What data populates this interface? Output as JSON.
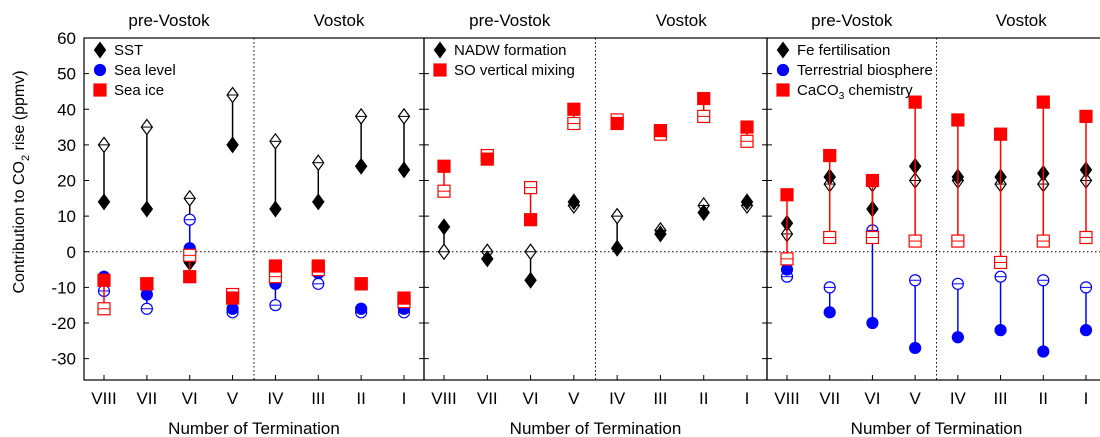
{
  "chart_data": {
    "type": "scatter",
    "ylabel_main": "Contribution to CO",
    "ylabel_sub": "2",
    "ylabel_tail": " rise (ppmv)",
    "xlabel": "Number of Termination",
    "categories": [
      "VIII",
      "VII",
      "VI",
      "V",
      "IV",
      "III",
      "II",
      "I"
    ],
    "ylim": [
      -36,
      60
    ],
    "yticks": [
      -30,
      -20,
      -10,
      0,
      10,
      20,
      30,
      40,
      50,
      60
    ],
    "zero_line": "dotted",
    "group_labels": [
      "pre-Vostok",
      "Vostok"
    ],
    "colors": {
      "black": "#000000",
      "blue": "#0000ff",
      "red": "#ff0000"
    },
    "panels": [
      {
        "legend_placement": "top-left",
        "series": [
          {
            "name": "SST",
            "color": "#000000",
            "marker": "diamond",
            "filled": [
              14,
              12,
              -3,
              30,
              12,
              14,
              24,
              23
            ],
            "open": [
              30,
              35,
              15,
              44,
              31,
              25,
              38,
              38
            ]
          },
          {
            "name": "Sea level",
            "color": "#0000ff",
            "marker": "circle",
            "filled": [
              -7,
              -12,
              1,
              -16,
              -9,
              -6,
              -16,
              -16
            ],
            "open": [
              -11,
              -16,
              9,
              -17,
              -15,
              -9,
              -17,
              -17
            ]
          },
          {
            "name": "Sea ice",
            "color": "#ff0000",
            "marker": "square",
            "filled": [
              -8,
              -9,
              -7,
              -13,
              -4,
              -4,
              -9,
              -13
            ],
            "open": [
              -16,
              -9,
              -1,
              -12,
              -7,
              -5,
              -9,
              -14
            ]
          }
        ]
      },
      {
        "legend_placement": "top-left",
        "series": [
          {
            "name": "NADW formation",
            "color": "#000000",
            "marker": "diamond",
            "filled": [
              7,
              -2,
              -8,
              14,
              1,
              5,
              11,
              14
            ],
            "open": [
              0,
              0,
              0,
              13,
              10,
              6,
              13,
              13
            ]
          },
          {
            "name": "SO vertical mixing",
            "color": "#ff0000",
            "marker": "square",
            "filled": [
              24,
              26,
              9,
              40,
              36,
              34,
              43,
              35
            ],
            "open": [
              17,
              27,
              18,
              36,
              37,
              33,
              38,
              31
            ]
          }
        ]
      },
      {
        "legend_placement": "top-left",
        "series": [
          {
            "name": "Fe fertilisation",
            "color": "#000000",
            "marker": "diamond",
            "filled": [
              8,
              21,
              12,
              24,
              21,
              21,
              22,
              23
            ],
            "open": [
              5,
              19,
              19,
              20,
              20,
              19,
              19,
              20
            ]
          },
          {
            "name": "Terrestrial biosphere",
            "color": "#0000ff",
            "marker": "circle",
            "filled": [
              -5,
              -17,
              -20,
              -27,
              -24,
              -22,
              -28,
              -22
            ],
            "open": [
              -7,
              -10,
              6,
              -8,
              -9,
              -7,
              -8,
              -10
            ]
          },
          {
            "name": "CaCO3 chemistry",
            "name_main": "CaCO",
            "name_sub": "3",
            "name_tail": " chemistry",
            "color": "#ff0000",
            "marker": "square",
            "filled": [
              16,
              27,
              20,
              42,
              37,
              33,
              42,
              38
            ],
            "open": [
              -2,
              4,
              4,
              3,
              3,
              -3,
              3,
              4
            ]
          }
        ]
      }
    ]
  }
}
